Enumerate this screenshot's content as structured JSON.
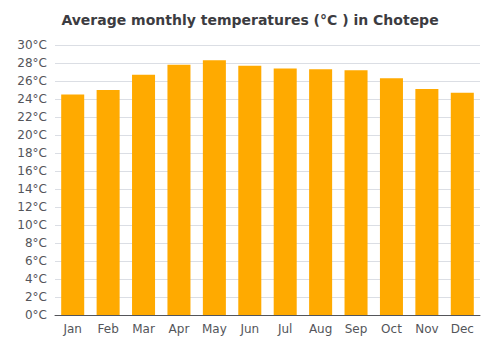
{
  "chart_data": {
    "type": "bar",
    "title": "Average monthly temperatures (°C ) in Chotepe",
    "categories": [
      "Jan",
      "Feb",
      "Mar",
      "Apr",
      "May",
      "Jun",
      "Jul",
      "Aug",
      "Sep",
      "Oct",
      "Nov",
      "Dec"
    ],
    "values": [
      24.5,
      25.0,
      26.7,
      27.8,
      28.3,
      27.7,
      27.4,
      27.3,
      27.2,
      26.3,
      25.1,
      24.7
    ],
    "color": "#FFAA00",
    "ylim": [
      0,
      30
    ],
    "yticks": [
      {
        "value": 0,
        "label": "0°C"
      },
      {
        "value": 2,
        "label": "2°C"
      },
      {
        "value": 4,
        "label": "4°C"
      },
      {
        "value": 6,
        "label": "6°C"
      },
      {
        "value": 8,
        "label": "8°C"
      },
      {
        "value": 10,
        "label": "10°C"
      },
      {
        "value": 12,
        "label": "12°C"
      },
      {
        "value": 14,
        "label": "14°C"
      },
      {
        "value": 16,
        "label": "16°C"
      },
      {
        "value": 18,
        "label": "18°C"
      },
      {
        "value": 20,
        "label": "20°C"
      },
      {
        "value": 22,
        "label": "22°C"
      },
      {
        "value": 24,
        "label": "24°C"
      },
      {
        "value": 26,
        "label": "26°C"
      },
      {
        "value": 28,
        "label": "28°C"
      },
      {
        "value": 30,
        "label": "30°C"
      }
    ],
    "grid": true
  }
}
